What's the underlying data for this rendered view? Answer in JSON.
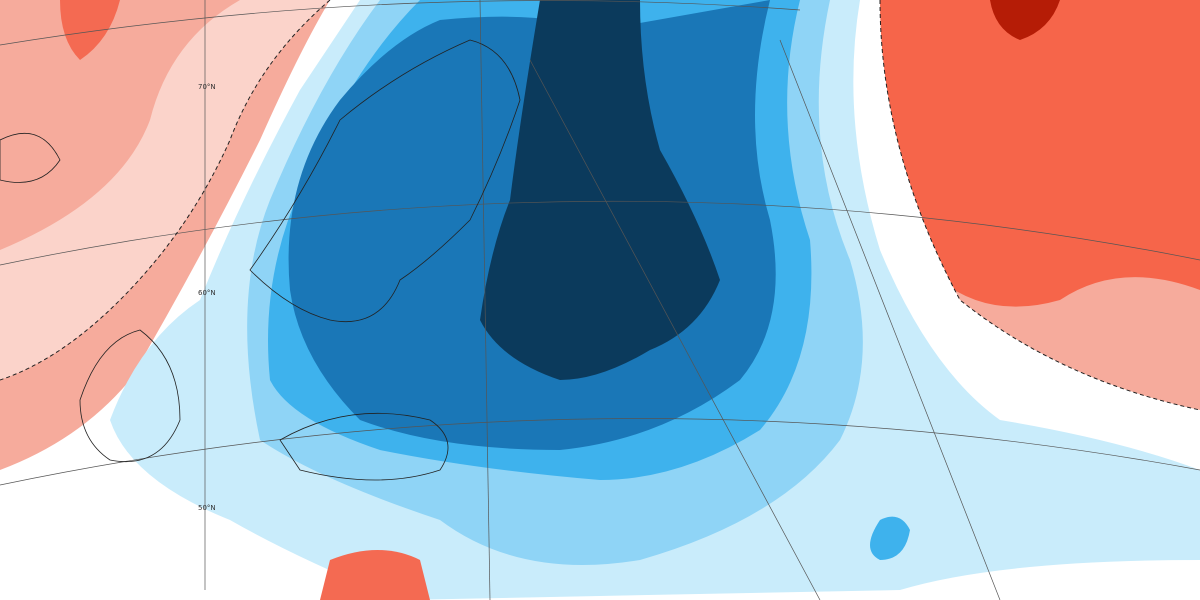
{
  "map": {
    "latitude_labels": [
      "70°N",
      "60°N",
      "50°N"
    ]
  }
}
